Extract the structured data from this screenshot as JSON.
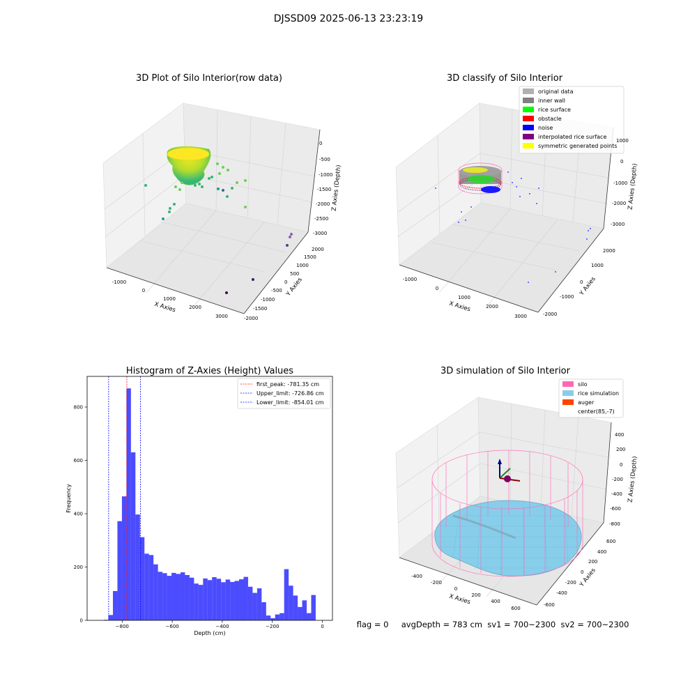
{
  "suptitle": "DJSSD09 2025-06-13 23:23:19",
  "chart_data": [
    {
      "type": "scatter",
      "projection": "3d",
      "title": "3D Plot of Silo Interior(row data)",
      "xlabel": "X Axies",
      "ylabel": "Y Axies",
      "zlabel": "Z Axies (Depth)",
      "xticks": [
        "-1000",
        "0",
        "1000",
        "2000",
        "3000"
      ],
      "yticks": [
        "-2000",
        "-1500",
        "-1000",
        "-500",
        "0",
        "500",
        "1000",
        "1500",
        "2000"
      ],
      "zticks": [
        "0",
        "-500",
        "-1000",
        "-1500",
        "-2000",
        "-2500",
        "-3000"
      ],
      "colormap": "viridis"
    },
    {
      "type": "scatter",
      "projection": "3d",
      "title": "3D classify of Silo Interior",
      "xlabel": "X Axies",
      "ylabel": "Y Axies",
      "zlabel": "Z Axies (Depth)",
      "xticks": [
        "-1000",
        "0",
        "1000",
        "2000",
        "3000"
      ],
      "yticks": [
        "-2000",
        "-1000",
        "0",
        "1000",
        "2000"
      ],
      "zticks": [
        "1000",
        "0",
        "-1000",
        "-2000",
        "-3000"
      ],
      "legend_position": "upper-right",
      "legend": [
        {
          "label": "original data",
          "color": "#b0b0b0"
        },
        {
          "label": "inner wall",
          "color": "#808080"
        },
        {
          "label": "rice surface",
          "color": "#00ff00"
        },
        {
          "label": "obstacle",
          "color": "#ff0000"
        },
        {
          "label": "noise",
          "color": "#0000ff"
        },
        {
          "label": "interpolated rice surface",
          "color": "#800080"
        },
        {
          "label": "symmetric generated points",
          "color": "#ffff00"
        }
      ]
    },
    {
      "type": "bar",
      "subtype": "histogram",
      "title": "Histogram of Z-Axies (Height) Values",
      "xlabel": "Depth (cm)",
      "ylabel": "Frequency",
      "xlim": [
        -940,
        40
      ],
      "ylim": [
        0,
        915
      ],
      "xticks": [
        -800,
        -600,
        -400,
        -200,
        0
      ],
      "yticks": [
        0,
        200,
        400,
        600,
        800
      ],
      "bar_color": "#0000ff",
      "bins": [
        {
          "x0": -873,
          "x1": -855,
          "value": 2
        },
        {
          "x0": -855,
          "x1": -837,
          "value": 20
        },
        {
          "x0": -837,
          "x1": -819,
          "value": 110
        },
        {
          "x0": -819,
          "x1": -801,
          "value": 372
        },
        {
          "x0": -801,
          "x1": -783,
          "value": 465
        },
        {
          "x0": -783,
          "x1": -765,
          "value": 870
        },
        {
          "x0": -765,
          "x1": -747,
          "value": 630
        },
        {
          "x0": -747,
          "x1": -729,
          "value": 397
        },
        {
          "x0": -729,
          "x1": -711,
          "value": 312
        },
        {
          "x0": -711,
          "x1": -693,
          "value": 250
        },
        {
          "x0": -693,
          "x1": -675,
          "value": 245
        },
        {
          "x0": -675,
          "x1": -657,
          "value": 210
        },
        {
          "x0": -657,
          "x1": -639,
          "value": 182
        },
        {
          "x0": -639,
          "x1": -621,
          "value": 177
        },
        {
          "x0": -621,
          "x1": -603,
          "value": 167
        },
        {
          "x0": -603,
          "x1": -585,
          "value": 178
        },
        {
          "x0": -585,
          "x1": -567,
          "value": 174
        },
        {
          "x0": -567,
          "x1": -549,
          "value": 180
        },
        {
          "x0": -549,
          "x1": -531,
          "value": 170
        },
        {
          "x0": -531,
          "x1": -513,
          "value": 160
        },
        {
          "x0": -513,
          "x1": -495,
          "value": 138
        },
        {
          "x0": -495,
          "x1": -477,
          "value": 133
        },
        {
          "x0": -477,
          "x1": -459,
          "value": 157
        },
        {
          "x0": -459,
          "x1": -441,
          "value": 151
        },
        {
          "x0": -441,
          "x1": -423,
          "value": 162
        },
        {
          "x0": -423,
          "x1": -405,
          "value": 156
        },
        {
          "x0": -405,
          "x1": -387,
          "value": 143
        },
        {
          "x0": -387,
          "x1": -369,
          "value": 153
        },
        {
          "x0": -369,
          "x1": -351,
          "value": 144
        },
        {
          "x0": -351,
          "x1": -333,
          "value": 148
        },
        {
          "x0": -333,
          "x1": -315,
          "value": 154
        },
        {
          "x0": -315,
          "x1": -297,
          "value": 163
        },
        {
          "x0": -297,
          "x1": -279,
          "value": 126
        },
        {
          "x0": -279,
          "x1": -261,
          "value": 103
        },
        {
          "x0": -261,
          "x1": -243,
          "value": 120
        },
        {
          "x0": -243,
          "x1": -225,
          "value": 68
        },
        {
          "x0": -225,
          "x1": -207,
          "value": 18
        },
        {
          "x0": -207,
          "x1": -189,
          "value": 8
        },
        {
          "x0": -189,
          "x1": -171,
          "value": 22
        },
        {
          "x0": -171,
          "x1": -153,
          "value": 27
        },
        {
          "x0": -153,
          "x1": -135,
          "value": 192
        },
        {
          "x0": -135,
          "x1": -117,
          "value": 130
        },
        {
          "x0": -117,
          "x1": -99,
          "value": 93
        },
        {
          "x0": -99,
          "x1": -81,
          "value": 50
        },
        {
          "x0": -81,
          "x1": -63,
          "value": 75
        },
        {
          "x0": -63,
          "x1": -45,
          "value": 27
        },
        {
          "x0": -45,
          "x1": -27,
          "value": 95
        }
      ],
      "vlines": [
        {
          "x": -781.35,
          "label": "first_peak: -781.35 cm",
          "color": "#ff0000"
        },
        {
          "x": -726.86,
          "label": "Upper_limit: -726.86 cm",
          "color": "#0000ff"
        },
        {
          "x": -854.01,
          "label": "Lower_limit: -854.01 cm",
          "color": "#0000ff"
        }
      ],
      "legend_position": "upper-right"
    },
    {
      "type": "surface",
      "projection": "3d",
      "title": "3D simulation of Silo Interior",
      "xlabel": "X Axies",
      "ylabel": "Y Axies",
      "zlabel": "Z Axies (Depth)",
      "xticks": [
        "-400",
        "-200",
        "0",
        "200",
        "400",
        "600"
      ],
      "yticks": [
        "-600",
        "-400",
        "-200",
        "0",
        "200",
        "400",
        "600"
      ],
      "zticks": [
        "400",
        "200",
        "0",
        "-200",
        "-400",
        "-600",
        "-800"
      ],
      "legend_position": "upper-right",
      "legend": [
        {
          "label": "silo",
          "color": "#ff69b4"
        },
        {
          "label": "rice simulation",
          "color": "#87ceeb"
        },
        {
          "label": "auger",
          "color": "#ff4500"
        },
        {
          "label": "center(85,-7)",
          "color": ""
        }
      ]
    }
  ],
  "status_line": "flag = 0     avgDepth = 783 cm  sv1 = 700~2300  sv2 = 700~2300"
}
